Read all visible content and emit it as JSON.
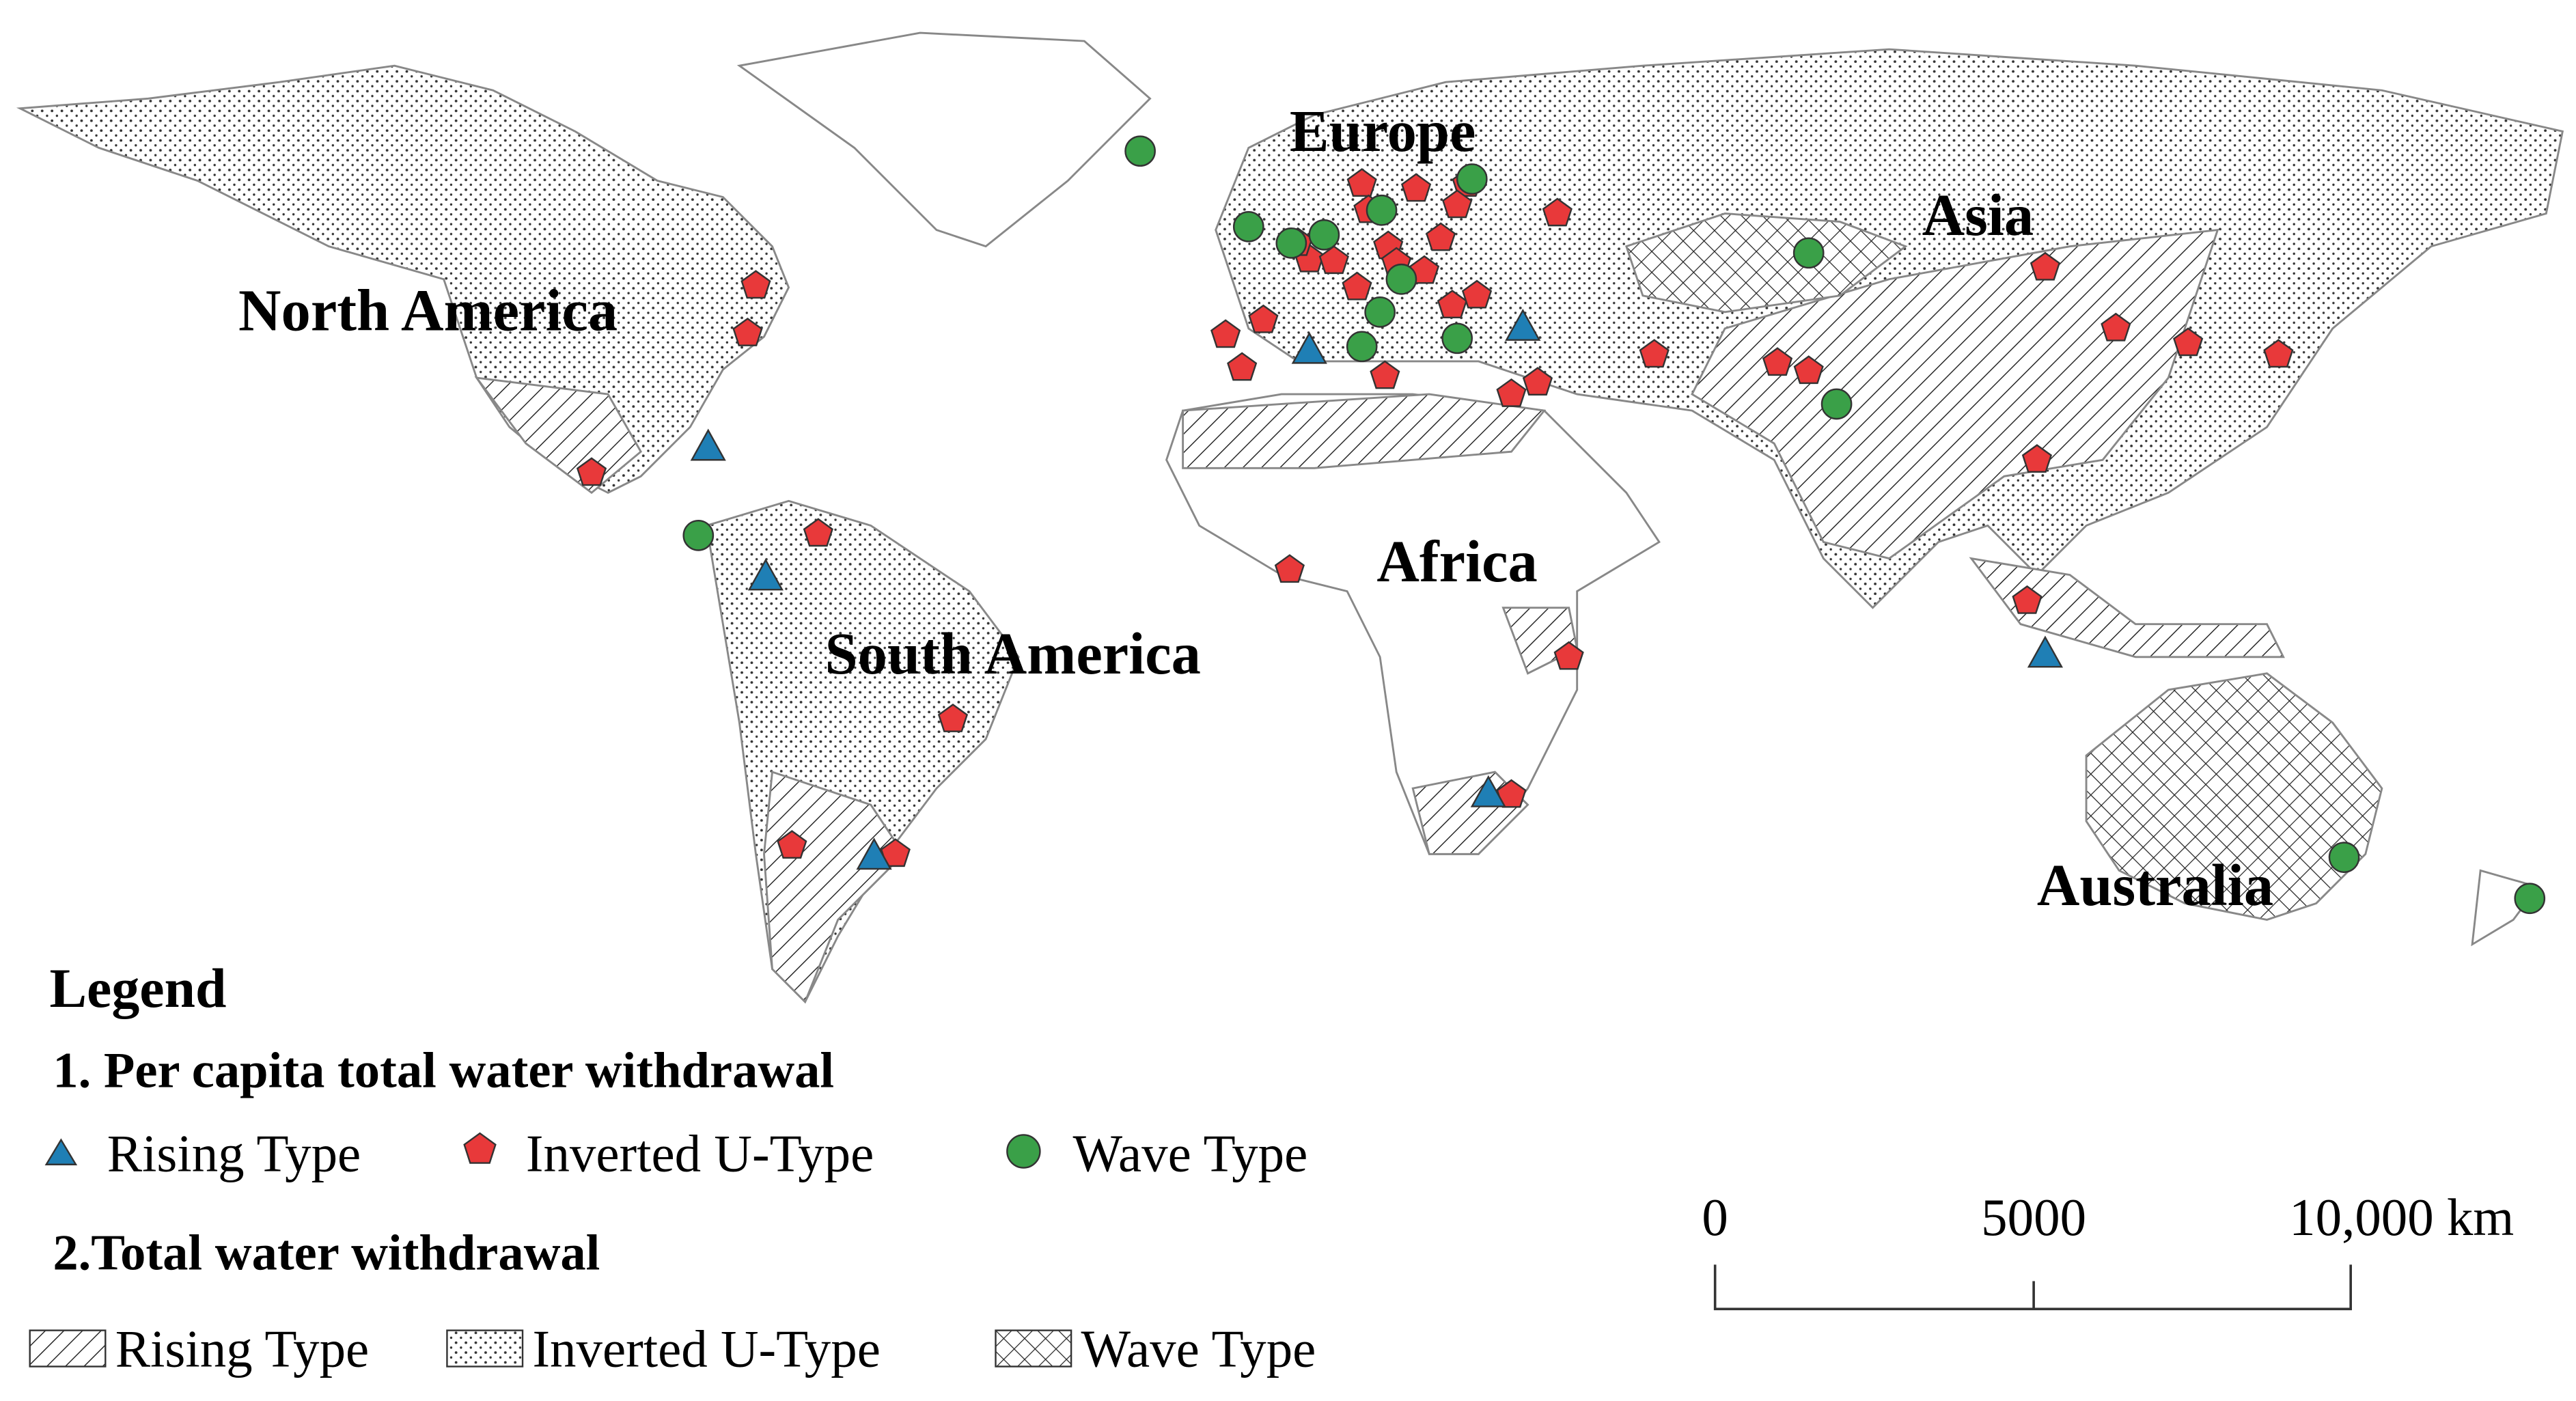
{
  "map": {
    "regions": [
      {
        "label": "Europe"
      },
      {
        "label": "Asia"
      },
      {
        "label": "North America"
      },
      {
        "label": "Africa"
      },
      {
        "label": "South America"
      },
      {
        "label": "Australia"
      }
    ],
    "legend": {
      "title": "Legend",
      "sections": [
        {
          "title": "1. Per capita total water withdrawal",
          "items": [
            "Rising Type",
            "Inverted U-Type",
            "Wave Type"
          ]
        },
        {
          "title": "2.Total water withdrawal",
          "items": [
            "Rising Type",
            "Inverted U-Type",
            "Wave Type"
          ]
        }
      ]
    },
    "scale_bar": {
      "labels": [
        "0",
        "5000",
        "10,000 km"
      ]
    }
  }
}
